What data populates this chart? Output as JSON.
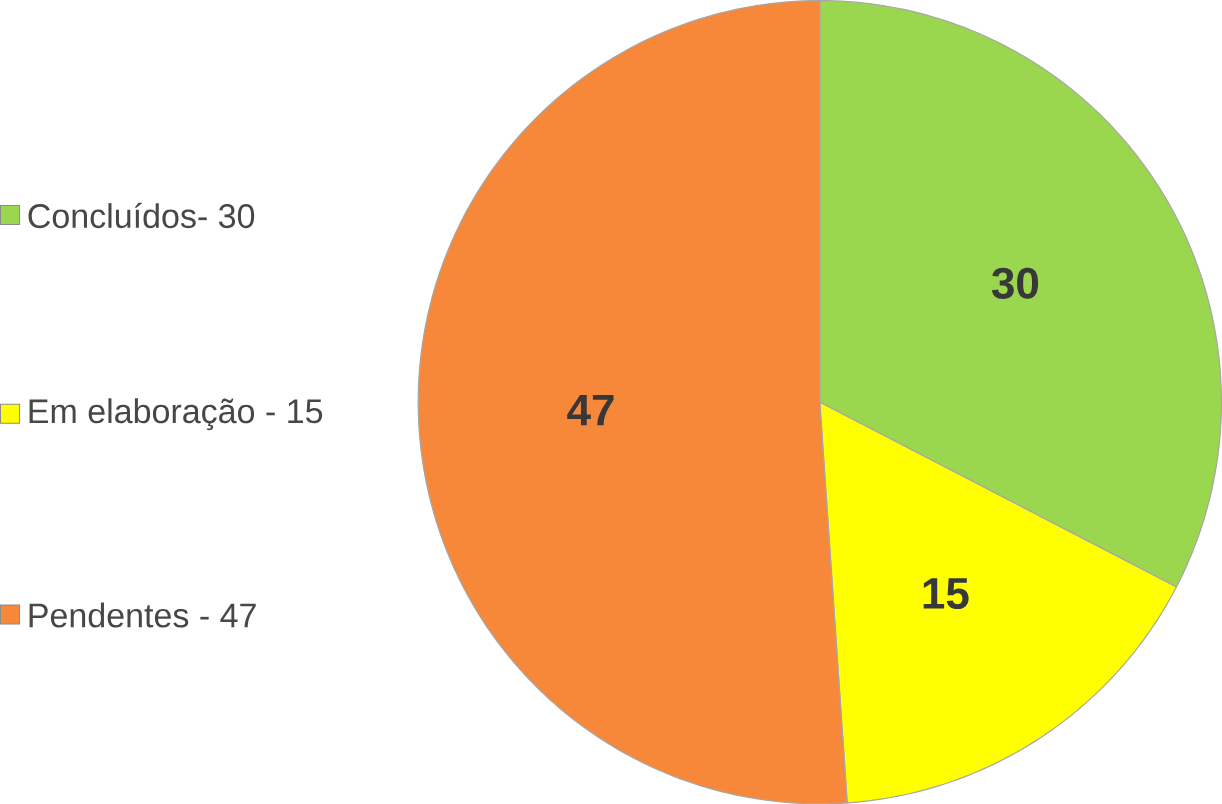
{
  "chart_data": {
    "type": "pie",
    "categories": [
      "Concluídos- 30",
      "Em elaboração - 15",
      "Pendentes - 47"
    ],
    "values": [
      30,
      15,
      47
    ],
    "colors": [
      "#9bd64f",
      "#ffff00",
      "#f7883a"
    ],
    "data_labels": true,
    "legend": "left"
  }
}
